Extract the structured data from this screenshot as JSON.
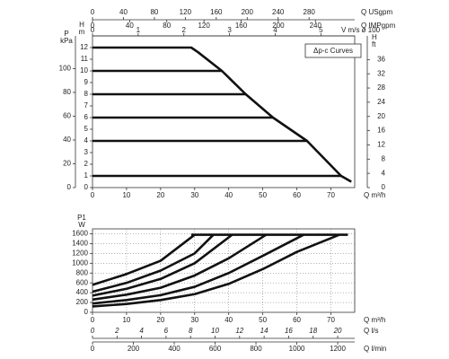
{
  "chart_data": [
    {
      "type": "line",
      "annotation": "Δp-c Curves",
      "x_label": "Q m³/h",
      "y_label": "H",
      "y_unit": "m",
      "xlim": [
        0,
        77
      ],
      "xticks": [
        0,
        10,
        20,
        30,
        40,
        50,
        60,
        70
      ],
      "ylim": [
        0,
        13
      ],
      "yticks": [
        0,
        1,
        2,
        3,
        4,
        5,
        6,
        7,
        8,
        9,
        10,
        11,
        12
      ],
      "y2_label": "H",
      "y2_unit": "ft",
      "y2lim": [
        0,
        42.65
      ],
      "y2ticks": [
        0,
        4,
        8,
        12,
        16,
        20,
        24,
        28,
        32,
        36
      ],
      "left_axis": {
        "label": "P",
        "unit": "kPa",
        "lim": [
          0,
          127.5
        ],
        "ticks": [
          0,
          20,
          40,
          60,
          80,
          100
        ]
      },
      "top_axes": [
        {
          "label": "Q USgpm",
          "lim": [
            0,
            339
          ],
          "ticks": [
            0,
            40,
            80,
            120,
            160,
            200,
            240,
            280
          ]
        },
        {
          "label": "Q IMPgpm",
          "lim": [
            0,
            282.3
          ],
          "ticks": [
            0,
            40,
            80,
            120,
            160,
            200,
            240
          ]
        },
        {
          "label": "V m/s ø 100",
          "lim": [
            0,
            5.74
          ],
          "ticks": [
            0,
            1,
            2,
            3,
            4,
            5
          ]
        }
      ],
      "grid": false,
      "color": "#111111",
      "series": [
        {
          "x": [
            0,
            29,
            31,
            38,
            45,
            53,
            63,
            73,
            76
          ],
          "values": [
            12,
            12,
            11.6,
            10,
            8,
            6,
            4,
            1,
            0.5
          ]
        },
        {
          "x": [
            0,
            38
          ],
          "values": [
            10,
            10
          ]
        },
        {
          "x": [
            0,
            45
          ],
          "values": [
            8,
            8
          ]
        },
        {
          "x": [
            0,
            53
          ],
          "values": [
            6,
            6
          ]
        },
        {
          "x": [
            0,
            63
          ],
          "values": [
            4,
            4
          ]
        },
        {
          "x": [
            0,
            73
          ],
          "values": [
            1,
            1
          ]
        }
      ]
    },
    {
      "type": "line",
      "x_label": "Q m³/h",
      "y_label": "P1",
      "y_unit": "W",
      "xlim": [
        0,
        77
      ],
      "xticks": [
        0,
        10,
        20,
        30,
        40,
        50,
        60,
        70
      ],
      "ylim": [
        0,
        1700
      ],
      "yticks": [
        0,
        200,
        400,
        600,
        800,
        1000,
        1200,
        1400,
        1600
      ],
      "bottom_axes": [
        {
          "label": "Q l/s",
          "lim": [
            0,
            21.39
          ],
          "ticks": [
            0,
            2,
            4,
            6,
            8,
            10,
            12,
            14,
            16,
            18,
            20
          ]
        },
        {
          "label": "Q l/min",
          "lim": [
            0,
            1283.3
          ],
          "ticks": [
            0,
            200,
            400,
            600,
            800,
            1000,
            1200
          ]
        }
      ],
      "grid": true,
      "color": "#111111",
      "series": [
        {
          "x": [
            29,
            75
          ],
          "values": [
            1580,
            1580
          ]
        },
        {
          "x": [
            0,
            10,
            20,
            30
          ],
          "values": [
            560,
            780,
            1050,
            1580
          ]
        },
        {
          "x": [
            0,
            10,
            20,
            30,
            35.5
          ],
          "values": [
            420,
            600,
            850,
            1200,
            1580
          ]
        },
        {
          "x": [
            0,
            10,
            20,
            30,
            41
          ],
          "values": [
            340,
            480,
            680,
            1000,
            1580
          ]
        },
        {
          "x": [
            0,
            10,
            20,
            30,
            40,
            51
          ],
          "values": [
            260,
            360,
            500,
            750,
            1100,
            1580
          ]
        },
        {
          "x": [
            0,
            10,
            20,
            30,
            40,
            50,
            62
          ],
          "values": [
            180,
            250,
            350,
            520,
            800,
            1150,
            1580
          ]
        },
        {
          "x": [
            0,
            10,
            20,
            30,
            40,
            50,
            60,
            72.5
          ],
          "values": [
            120,
            170,
            250,
            370,
            580,
            880,
            1230,
            1580
          ]
        }
      ]
    }
  ]
}
